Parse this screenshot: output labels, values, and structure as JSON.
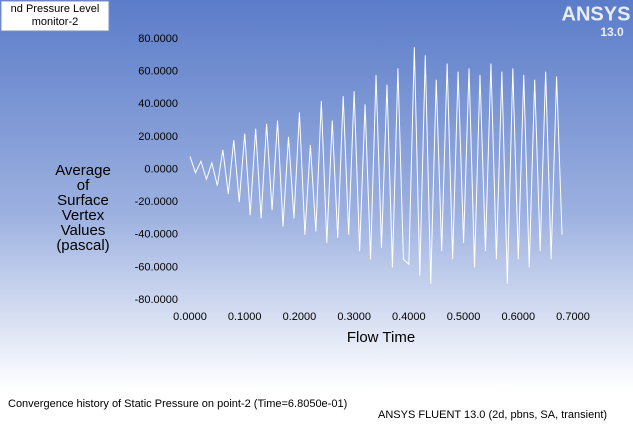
{
  "chart_data": {
    "type": "line",
    "legend_title": "nd Pressure Level",
    "logo": "ANSYS",
    "logo_version": "13.0",
    "ylabel": [
      "Average",
      "of",
      "Surface",
      "Vertex",
      "Values",
      "(pascal)"
    ],
    "xlabel": "Flow Time",
    "caption": "Convergence history of Static Pressure on point-2  (Time=6.8050e-01)",
    "footer": "ANSYS FLUENT 13.0 (2d, pbns, SA, transient)",
    "x": [
      0,
      0.01,
      0.02,
      0.03,
      0.04,
      0.05,
      0.06,
      0.07,
      0.08,
      0.09,
      0.1,
      0.11,
      0.12,
      0.13,
      0.14,
      0.15,
      0.16,
      0.17,
      0.18,
      0.19,
      0.2,
      0.21,
      0.22,
      0.23,
      0.24,
      0.25,
      0.26,
      0.27,
      0.28,
      0.29,
      0.3,
      0.31,
      0.32,
      0.33,
      0.34,
      0.35,
      0.36,
      0.37,
      0.38,
      0.39,
      0.4,
      0.41,
      0.42,
      0.43,
      0.44,
      0.45,
      0.46,
      0.47,
      0.48,
      0.49,
      0.5,
      0.51,
      0.52,
      0.53,
      0.54,
      0.55,
      0.56,
      0.57,
      0.58,
      0.59,
      0.6,
      0.61,
      0.62,
      0.63,
      0.64,
      0.65,
      0.66,
      0.67,
      0.68
    ],
    "series": [
      {
        "name": "monitor-2",
        "color": "#ffffff",
        "values": [
          8,
          -2,
          5,
          -6,
          4,
          -10,
          12,
          -15,
          18,
          -20,
          22,
          -28,
          25,
          -30,
          28,
          -25,
          30,
          -35,
          20,
          -30,
          35,
          -40,
          15,
          -38,
          42,
          -45,
          30,
          -42,
          45,
          -40,
          48,
          -50,
          40,
          -55,
          58,
          -48,
          52,
          -60,
          62,
          -55,
          -58,
          75,
          -65,
          70,
          -70,
          55,
          -50,
          65,
          -55,
          60,
          -45,
          62,
          -60,
          58,
          -50,
          65,
          -55,
          60,
          -70,
          62,
          -55,
          58,
          -60,
          55,
          -50,
          60,
          -55,
          57,
          -40
        ]
      }
    ],
    "xlim": [
      0,
      0.7
    ],
    "xticks": [
      {
        "value": 0,
        "label": "0.0000"
      },
      {
        "value": 0.1,
        "label": "0.1000"
      },
      {
        "value": 0.2,
        "label": "0.2000"
      },
      {
        "value": 0.3,
        "label": "0.3000"
      },
      {
        "value": 0.4,
        "label": "0.4000"
      },
      {
        "value": 0.5,
        "label": "0.5000"
      },
      {
        "value": 0.6,
        "label": "0.6000"
      },
      {
        "value": 0.7,
        "label": "0.7000"
      }
    ],
    "ylim": [
      -80,
      80
    ],
    "yticks": [
      {
        "value": -80,
        "label": "-80.0000"
      },
      {
        "value": -60,
        "label": "-60.0000"
      },
      {
        "value": -40,
        "label": "-40.0000"
      },
      {
        "value": -20,
        "label": "-20.0000"
      },
      {
        "value": 0,
        "label": "0.0000"
      },
      {
        "value": 20,
        "label": "20.0000"
      },
      {
        "value": 40,
        "label": "40.0000"
      },
      {
        "value": 60,
        "label": "60.0000"
      },
      {
        "value": 80,
        "label": "80.0000"
      }
    ]
  }
}
